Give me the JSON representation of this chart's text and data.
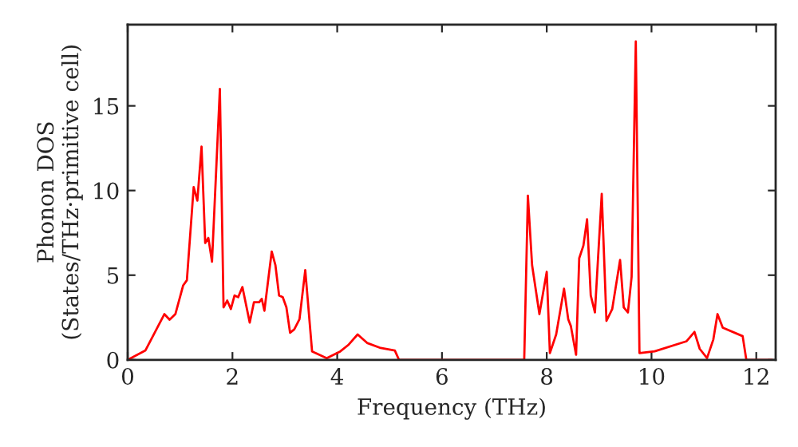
{
  "chart_data": {
    "type": "line",
    "xlabel": "Frequency (THz)",
    "ylabel": "Phonon DOS\n(States/THz·primitive cell)",
    "xlim": [
      0,
      12.37
    ],
    "ylim": [
      0,
      19.8
    ],
    "xticks": [
      0,
      2,
      4,
      6,
      8,
      10,
      12
    ],
    "yticks": [
      0,
      5,
      10,
      15
    ],
    "grid": false,
    "legend": false,
    "marker": "none",
    "line_style": "solid",
    "series": [
      {
        "color": "#ff0000",
        "x": [
          0,
          0.34,
          0.7,
          0.8,
          0.91,
          1.06,
          1.13,
          1.26,
          1.33,
          1.41,
          1.48,
          1.54,
          1.61,
          1.76,
          1.83,
          1.9,
          1.97,
          2.04,
          2.11,
          2.19,
          2.33,
          2.41,
          2.51,
          2.56,
          2.61,
          2.75,
          2.82,
          2.89,
          2.96,
          3.03,
          3.1,
          3.18,
          3.28,
          3.39,
          3.52,
          3.8,
          4.06,
          4.22,
          4.39,
          4.57,
          4.83,
          5.1,
          5.18,
          7.57,
          7.64,
          7.72,
          7.86,
          8.0,
          8.06,
          8.18,
          8.33,
          8.41,
          8.46,
          8.56,
          8.62,
          8.7,
          8.77,
          8.84,
          8.92,
          9.05,
          9.14,
          9.25,
          9.4,
          9.47,
          9.55,
          9.62,
          9.7,
          9.77,
          10.06,
          10.67,
          10.82,
          10.92,
          11.06,
          11.18,
          11.26,
          11.36,
          11.74,
          11.81,
          12.3
        ],
        "values": [
          0,
          0.56,
          2.7,
          2.37,
          2.7,
          4.4,
          4.7,
          10.2,
          9.4,
          12.6,
          6.9,
          7.2,
          5.8,
          16.0,
          3.1,
          3.5,
          3.0,
          3.8,
          3.7,
          4.3,
          2.2,
          3.4,
          3.4,
          3.6,
          2.9,
          6.4,
          5.6,
          3.8,
          3.7,
          3.1,
          1.6,
          1.8,
          2.4,
          5.3,
          0.5,
          0.1,
          0.5,
          0.9,
          1.5,
          1.0,
          0.7,
          0.55,
          0,
          0,
          9.7,
          5.6,
          2.7,
          5.2,
          0.4,
          1.5,
          4.2,
          2.4,
          2.0,
          0.3,
          6.0,
          6.75,
          8.3,
          3.8,
          2.8,
          9.8,
          2.3,
          3.0,
          5.9,
          3.1,
          2.8,
          4.9,
          18.8,
          0.4,
          0.5,
          1.1,
          1.65,
          0.65,
          0.1,
          1.2,
          2.7,
          1.9,
          1.4,
          0,
          0
        ]
      }
    ]
  }
}
